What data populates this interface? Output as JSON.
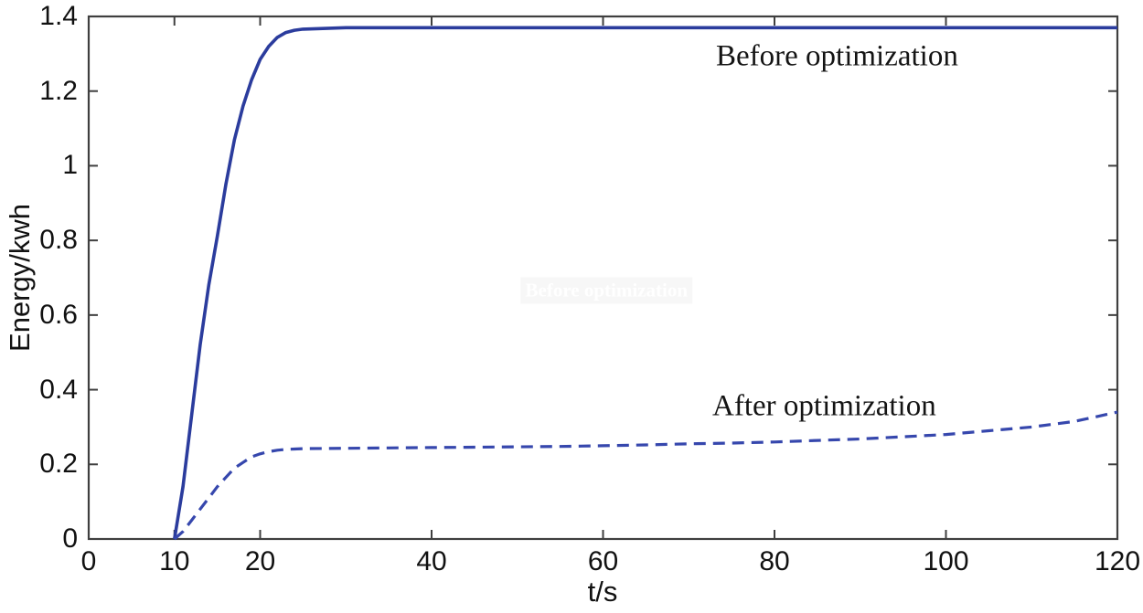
{
  "figure": {
    "background": "#ffffff",
    "axis_color": "#3f3f3f",
    "text_color": "#111111"
  },
  "chart_data": {
    "type": "line",
    "title": "",
    "xlabel": "t/s",
    "ylabel": "Energy/kwh",
    "xlim": [
      0,
      120
    ],
    "ylim": [
      0,
      1.4
    ],
    "x_ticks": [
      0,
      10,
      20,
      40,
      60,
      80,
      100,
      120
    ],
    "x_tick_labels": [
      "0",
      "10",
      "20",
      "40",
      "60",
      "80",
      "100",
      "120"
    ],
    "y_ticks": [
      0,
      0.2,
      0.4,
      0.6,
      0.8,
      1,
      1.2,
      1.4
    ],
    "y_tick_labels": [
      "0",
      "0.2",
      "0.4",
      "0.6",
      "0.8",
      "1",
      "1.2",
      "1.4"
    ],
    "grid": false,
    "box": true,
    "legend_position": "none",
    "series": [
      {
        "name": "Before optimization",
        "line_style": "solid",
        "line_width": 3.6,
        "color": "#2b3c9d",
        "x": [
          10,
          11,
          12,
          13,
          14,
          15,
          16,
          17,
          18,
          19,
          20,
          21,
          22,
          23,
          24,
          25,
          30,
          40,
          60,
          80,
          100,
          120
        ],
        "y": [
          0,
          0.14,
          0.33,
          0.52,
          0.68,
          0.81,
          0.95,
          1.07,
          1.16,
          1.23,
          1.285,
          1.32,
          1.344,
          1.357,
          1.363,
          1.366,
          1.37,
          1.37,
          1.37,
          1.37,
          1.37,
          1.37
        ]
      },
      {
        "name": "After optimization",
        "line_style": "dashed",
        "line_width": 3.2,
        "color": "#3647ad",
        "x": [
          10,
          11,
          12,
          13,
          14,
          15,
          16,
          17,
          18,
          19,
          20,
          21,
          22,
          23,
          24,
          25,
          30,
          35,
          40,
          45,
          50,
          55,
          60,
          65,
          70,
          75,
          80,
          85,
          90,
          95,
          100,
          105,
          110,
          115,
          120
        ],
        "y": [
          0,
          0.02,
          0.05,
          0.08,
          0.11,
          0.14,
          0.165,
          0.19,
          0.205,
          0.22,
          0.228,
          0.234,
          0.238,
          0.24,
          0.241,
          0.242,
          0.243,
          0.244,
          0.245,
          0.246,
          0.247,
          0.248,
          0.25,
          0.252,
          0.255,
          0.257,
          0.26,
          0.264,
          0.268,
          0.274,
          0.28,
          0.29,
          0.3,
          0.315,
          0.34
        ]
      }
    ],
    "annotations": [
      {
        "text": "Before optimization",
        "x": 87.3,
        "y": 1.292
      },
      {
        "text": "After optimization",
        "x": 85.8,
        "y": 0.355
      }
    ],
    "watermark": {
      "text": "Before optimization",
      "x": 60.4,
      "y": 0.666
    }
  }
}
